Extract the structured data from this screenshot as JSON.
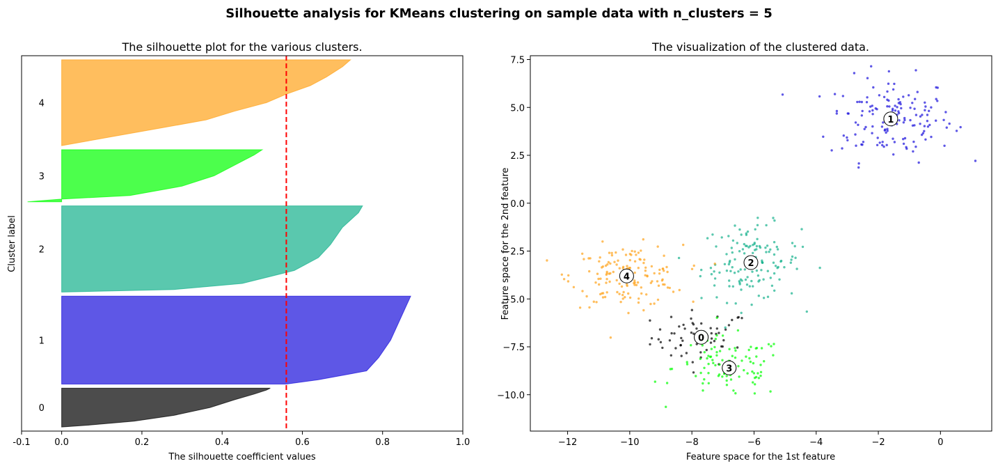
{
  "figure": {
    "suptitle": "Silhouette analysis for KMeans clustering on sample data with n_clusters = 5"
  },
  "chart_data": [
    {
      "type": "area",
      "title": "The silhouette plot for the various clusters.",
      "xlabel": "The silhouette coefficient values",
      "ylabel": "Cluster label",
      "xlim": [
        -0.1,
        1.0
      ],
      "xticks": [
        "-0.1",
        "0.0",
        "0.2",
        "0.4",
        "0.6",
        "0.8",
        "1.0"
      ],
      "xtick_values": [
        -0.1,
        0.0,
        0.2,
        0.4,
        0.6,
        0.8,
        1.0
      ],
      "silhouette_avg": 0.56,
      "ylim": [
        0,
        560
      ],
      "clusters": [
        {
          "label": "0",
          "color": "#000000",
          "y_lower": 10,
          "y_upper": 104,
          "profile": [
            [
              0,
              0.52
            ],
            [
              0.05,
              0.51
            ],
            [
              0.15,
              0.48
            ],
            [
              0.3,
              0.43
            ],
            [
              0.5,
              0.37
            ],
            [
              0.7,
              0.28
            ],
            [
              0.85,
              0.18
            ],
            [
              0.95,
              0.07
            ],
            [
              1,
              0.0
            ]
          ]
        },
        {
          "label": "1",
          "color": "#1a0fdc",
          "y_lower": 114,
          "y_upper": 327,
          "profile": [
            [
              0,
              0.87
            ],
            [
              0.1,
              0.86
            ],
            [
              0.3,
              0.84
            ],
            [
              0.5,
              0.82
            ],
            [
              0.7,
              0.79
            ],
            [
              0.85,
              0.76
            ],
            [
              0.95,
              0.64
            ],
            [
              1,
              0.56
            ]
          ]
        },
        {
          "label": "2",
          "color": "#14b08c",
          "y_lower": 337,
          "y_upper": 546,
          "profile": [
            [
              0,
              0.75
            ],
            [
              0.08,
              0.74
            ],
            [
              0.25,
              0.7
            ],
            [
              0.45,
              0.67
            ],
            [
              0.6,
              0.64
            ],
            [
              0.75,
              0.58
            ],
            [
              0.9,
              0.45
            ],
            [
              0.97,
              0.28
            ],
            [
              1,
              0.0
            ]
          ]
        },
        {
          "label": "3",
          "color": "#00ff00",
          "y_lower": 556,
          "y_upper": 682,
          "profile": [
            [
              0,
              0.5
            ],
            [
              0.1,
              0.48
            ],
            [
              0.3,
              0.43
            ],
            [
              0.5,
              0.38
            ],
            [
              0.7,
              0.3
            ],
            [
              0.88,
              0.17
            ],
            [
              0.95,
              0.0
            ],
            [
              1,
              -0.085
            ]
          ]
        },
        {
          "label": "4",
          "color": "#ffa21a",
          "y_lower": 692,
          "y_upper": 900,
          "profile": [
            [
              0,
              0.72
            ],
            [
              0.08,
              0.7
            ],
            [
              0.2,
              0.66
            ],
            [
              0.3,
              0.62
            ],
            [
              0.4,
              0.56
            ],
            [
              0.5,
              0.51
            ],
            [
              0.6,
              0.43
            ],
            [
              0.7,
              0.36
            ],
            [
              0.8,
              0.24
            ],
            [
              0.9,
              0.12
            ],
            [
              1,
              0.0
            ]
          ]
        }
      ]
    },
    {
      "type": "scatter",
      "title": "The visualization of the clustered data.",
      "xlabel": "Feature space for the 1st feature",
      "ylabel": "Feature space for the 2nd feature",
      "xlim": [
        -13.2,
        1.65
      ],
      "ylim": [
        -11.9,
        7.7
      ],
      "xticks": [
        "−12",
        "−10",
        "−8",
        "−6",
        "−4",
        "−2",
        "0"
      ],
      "xtick_values": [
        -12,
        -10,
        -8,
        -6,
        -4,
        -2,
        0
      ],
      "yticks": [
        "−10.0",
        "−7.5",
        "−5.0",
        "−2.5",
        "0.0",
        "2.5",
        "5.0",
        "7.5"
      ],
      "ytick_values": [
        -10.0,
        -7.5,
        -5.0,
        -2.5,
        0.0,
        2.5,
        5.0,
        7.5
      ],
      "clusters": [
        {
          "label": "0",
          "color": "#000000",
          "center": [
            -7.7,
            -7.0
          ],
          "spread": [
            0.8,
            0.7
          ],
          "n": 60
        },
        {
          "label": "1",
          "color": "#1a0fdc",
          "center": [
            -1.6,
            4.4
          ],
          "spread": [
            1.0,
            1.1
          ],
          "n": 150
        },
        {
          "label": "2",
          "color": "#14b08c",
          "center": [
            -6.1,
            -3.1
          ],
          "spread": [
            0.8,
            1.0
          ],
          "n": 140
        },
        {
          "label": "3",
          "color": "#00ff00",
          "center": [
            -6.8,
            -8.6
          ],
          "spread": [
            0.9,
            0.8
          ],
          "n": 100
        },
        {
          "label": "4",
          "color": "#ffa21a",
          "center": [
            -10.1,
            -3.8
          ],
          "spread": [
            0.9,
            0.8
          ],
          "n": 150
        }
      ]
    }
  ]
}
